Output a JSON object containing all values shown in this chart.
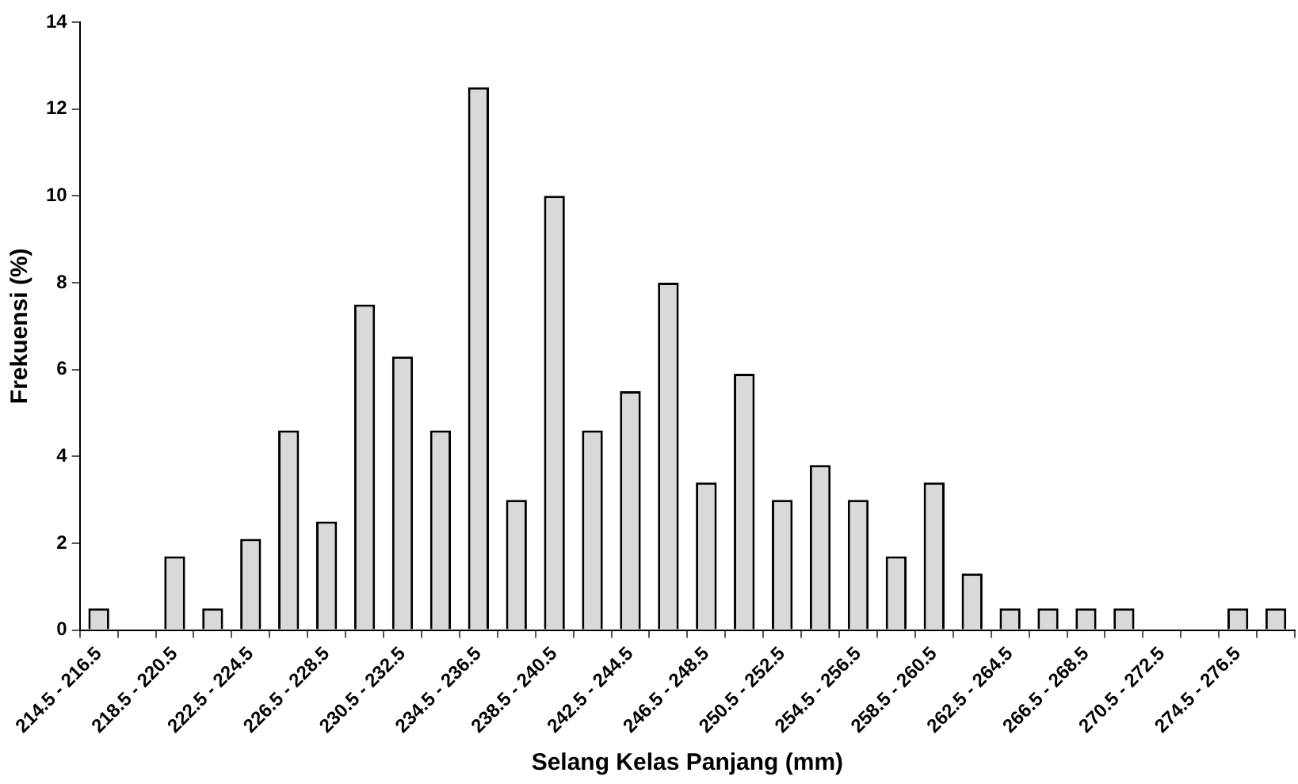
{
  "chart_data": {
    "type": "bar",
    "xlabel": "Selang Kelas Panjang (mm)",
    "ylabel": "Frekuensi (%)",
    "categories": [
      "214.5 - 216.5",
      null,
      "218.5 - 220.5",
      null,
      "222.5 - 224.5",
      null,
      "226.5 - 228.5",
      null,
      "230.5 - 232.5",
      null,
      "234.5 - 236.5",
      null,
      "238.5 - 240.5",
      null,
      "242.5 - 244.5",
      null,
      "246.5 - 248.5",
      null,
      "250.5 - 252.5",
      null,
      "254.5 - 256.5",
      null,
      "258.5 - 260.5",
      null,
      "262.5 - 264.5",
      null,
      "266.5 - 268.5",
      null,
      "270.5 - 272.5",
      null,
      "274.5 - 276.5",
      null
    ],
    "values": [
      0.5,
      0,
      1.7,
      0.5,
      2.1,
      4.6,
      2.5,
      7.5,
      6.3,
      4.6,
      12.5,
      3.0,
      10.0,
      4.6,
      5.5,
      8.0,
      3.4,
      5.9,
      3.0,
      3.8,
      3.0,
      1.7,
      3.4,
      1.3,
      0.5,
      0.5,
      0.5,
      0.5,
      0,
      0,
      0.5,
      0.5
    ],
    "color": "#d9d9d9",
    "ylim": [
      0,
      14
    ],
    "yticks": [
      0,
      2,
      4,
      6,
      8,
      10,
      12,
      14
    ],
    "grid": false,
    "legend": false
  }
}
